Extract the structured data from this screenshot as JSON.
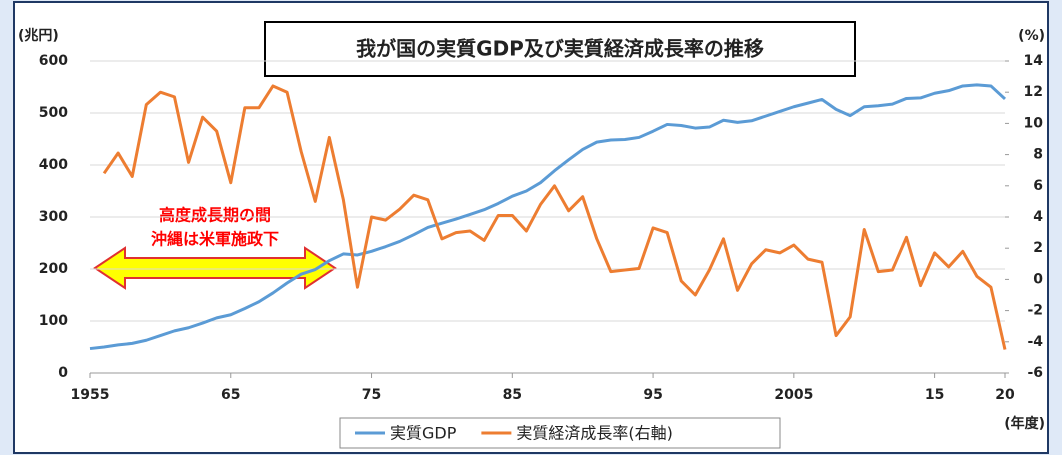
{
  "chart_data": {
    "type": "line",
    "title": "我が国の実質GDP及び実質経済成長率の推移",
    "y_unit": "(兆円)",
    "y2_unit": "(%)",
    "x_unit": "(年度)",
    "annotations": [
      "高度成長期の間",
      "沖縄は米軍施政下"
    ],
    "x": [
      1955,
      1956,
      1957,
      1958,
      1959,
      1960,
      1961,
      1962,
      1963,
      1964,
      1965,
      1966,
      1967,
      1968,
      1969,
      1970,
      1971,
      1972,
      1973,
      1974,
      1975,
      1976,
      1977,
      1978,
      1979,
      1980,
      1981,
      1982,
      1983,
      1984,
      1985,
      1986,
      1987,
      1988,
      1989,
      1990,
      1991,
      1992,
      1993,
      1994,
      1995,
      1996,
      1997,
      1998,
      1999,
      2000,
      2001,
      2002,
      2003,
      2004,
      2005,
      2006,
      2007,
      2008,
      2009,
      2010,
      2011,
      2012,
      2013,
      2014,
      2015,
      2016,
      2017,
      2018,
      2019,
      2020
    ],
    "xlim": [
      1955,
      2020
    ],
    "xticks": [
      {
        "value": 1955,
        "label": "1955"
      },
      {
        "value": 1965,
        "label": "65"
      },
      {
        "value": 1975,
        "label": "75"
      },
      {
        "value": 1985,
        "label": "85"
      },
      {
        "value": 1995,
        "label": "95"
      },
      2005,
      {
        "value": 2015,
        "label": "15"
      },
      {
        "value": 2020,
        "label": "20"
      }
    ],
    "ylim": [
      0,
      600
    ],
    "yticks": [
      0,
      100,
      200,
      300,
      400,
      500,
      600
    ],
    "y2lim": [
      -6,
      14
    ],
    "y2ticks": [
      -6,
      -4,
      -2,
      0,
      2,
      4,
      6,
      8,
      10,
      12,
      14
    ],
    "grid": true,
    "series": [
      {
        "name": "実質GDP",
        "color": "#5b9bd5",
        "values": [
          47,
          50,
          54,
          57,
          63,
          72,
          81,
          87,
          96,
          106,
          112,
          124,
          137,
          154,
          173,
          190,
          199,
          216,
          229,
          227,
          234,
          243,
          253,
          266,
          280,
          288,
          296,
          305,
          314,
          326,
          340,
          350,
          366,
          389,
          410,
          430,
          444,
          448,
          449,
          453,
          465,
          478,
          476,
          471,
          473,
          486,
          482,
          485,
          494,
          503,
          512,
          519,
          526,
          507,
          495,
          512,
          514,
          517,
          528,
          529,
          538,
          543,
          552,
          554,
          552,
          527
        ]
      },
      {
        "name": "実質経済成長率(右軸)",
        "color": "#ed7d31",
        "axis": "y2",
        "values": [
          null,
          6.8,
          8.1,
          6.6,
          11.2,
          12.0,
          11.7,
          7.5,
          10.4,
          9.5,
          6.2,
          11.0,
          11.0,
          12.4,
          12.0,
          8.2,
          5.0,
          9.1,
          5.1,
          -0.5,
          4.0,
          3.8,
          4.5,
          5.4,
          5.1,
          2.6,
          3.0,
          3.1,
          2.5,
          4.1,
          4.1,
          3.1,
          4.8,
          6.0,
          4.4,
          5.3,
          2.6,
          0.5,
          0.6,
          0.7,
          3.3,
          3.0,
          -0.1,
          -1.0,
          0.6,
          2.6,
          -0.7,
          1.0,
          1.9,
          1.7,
          2.2,
          1.3,
          1.1,
          -3.6,
          -2.4,
          3.2,
          0.5,
          0.6,
          2.7,
          -0.4,
          1.7,
          0.8,
          1.8,
          0.2,
          -0.5,
          -4.5
        ]
      }
    ]
  }
}
